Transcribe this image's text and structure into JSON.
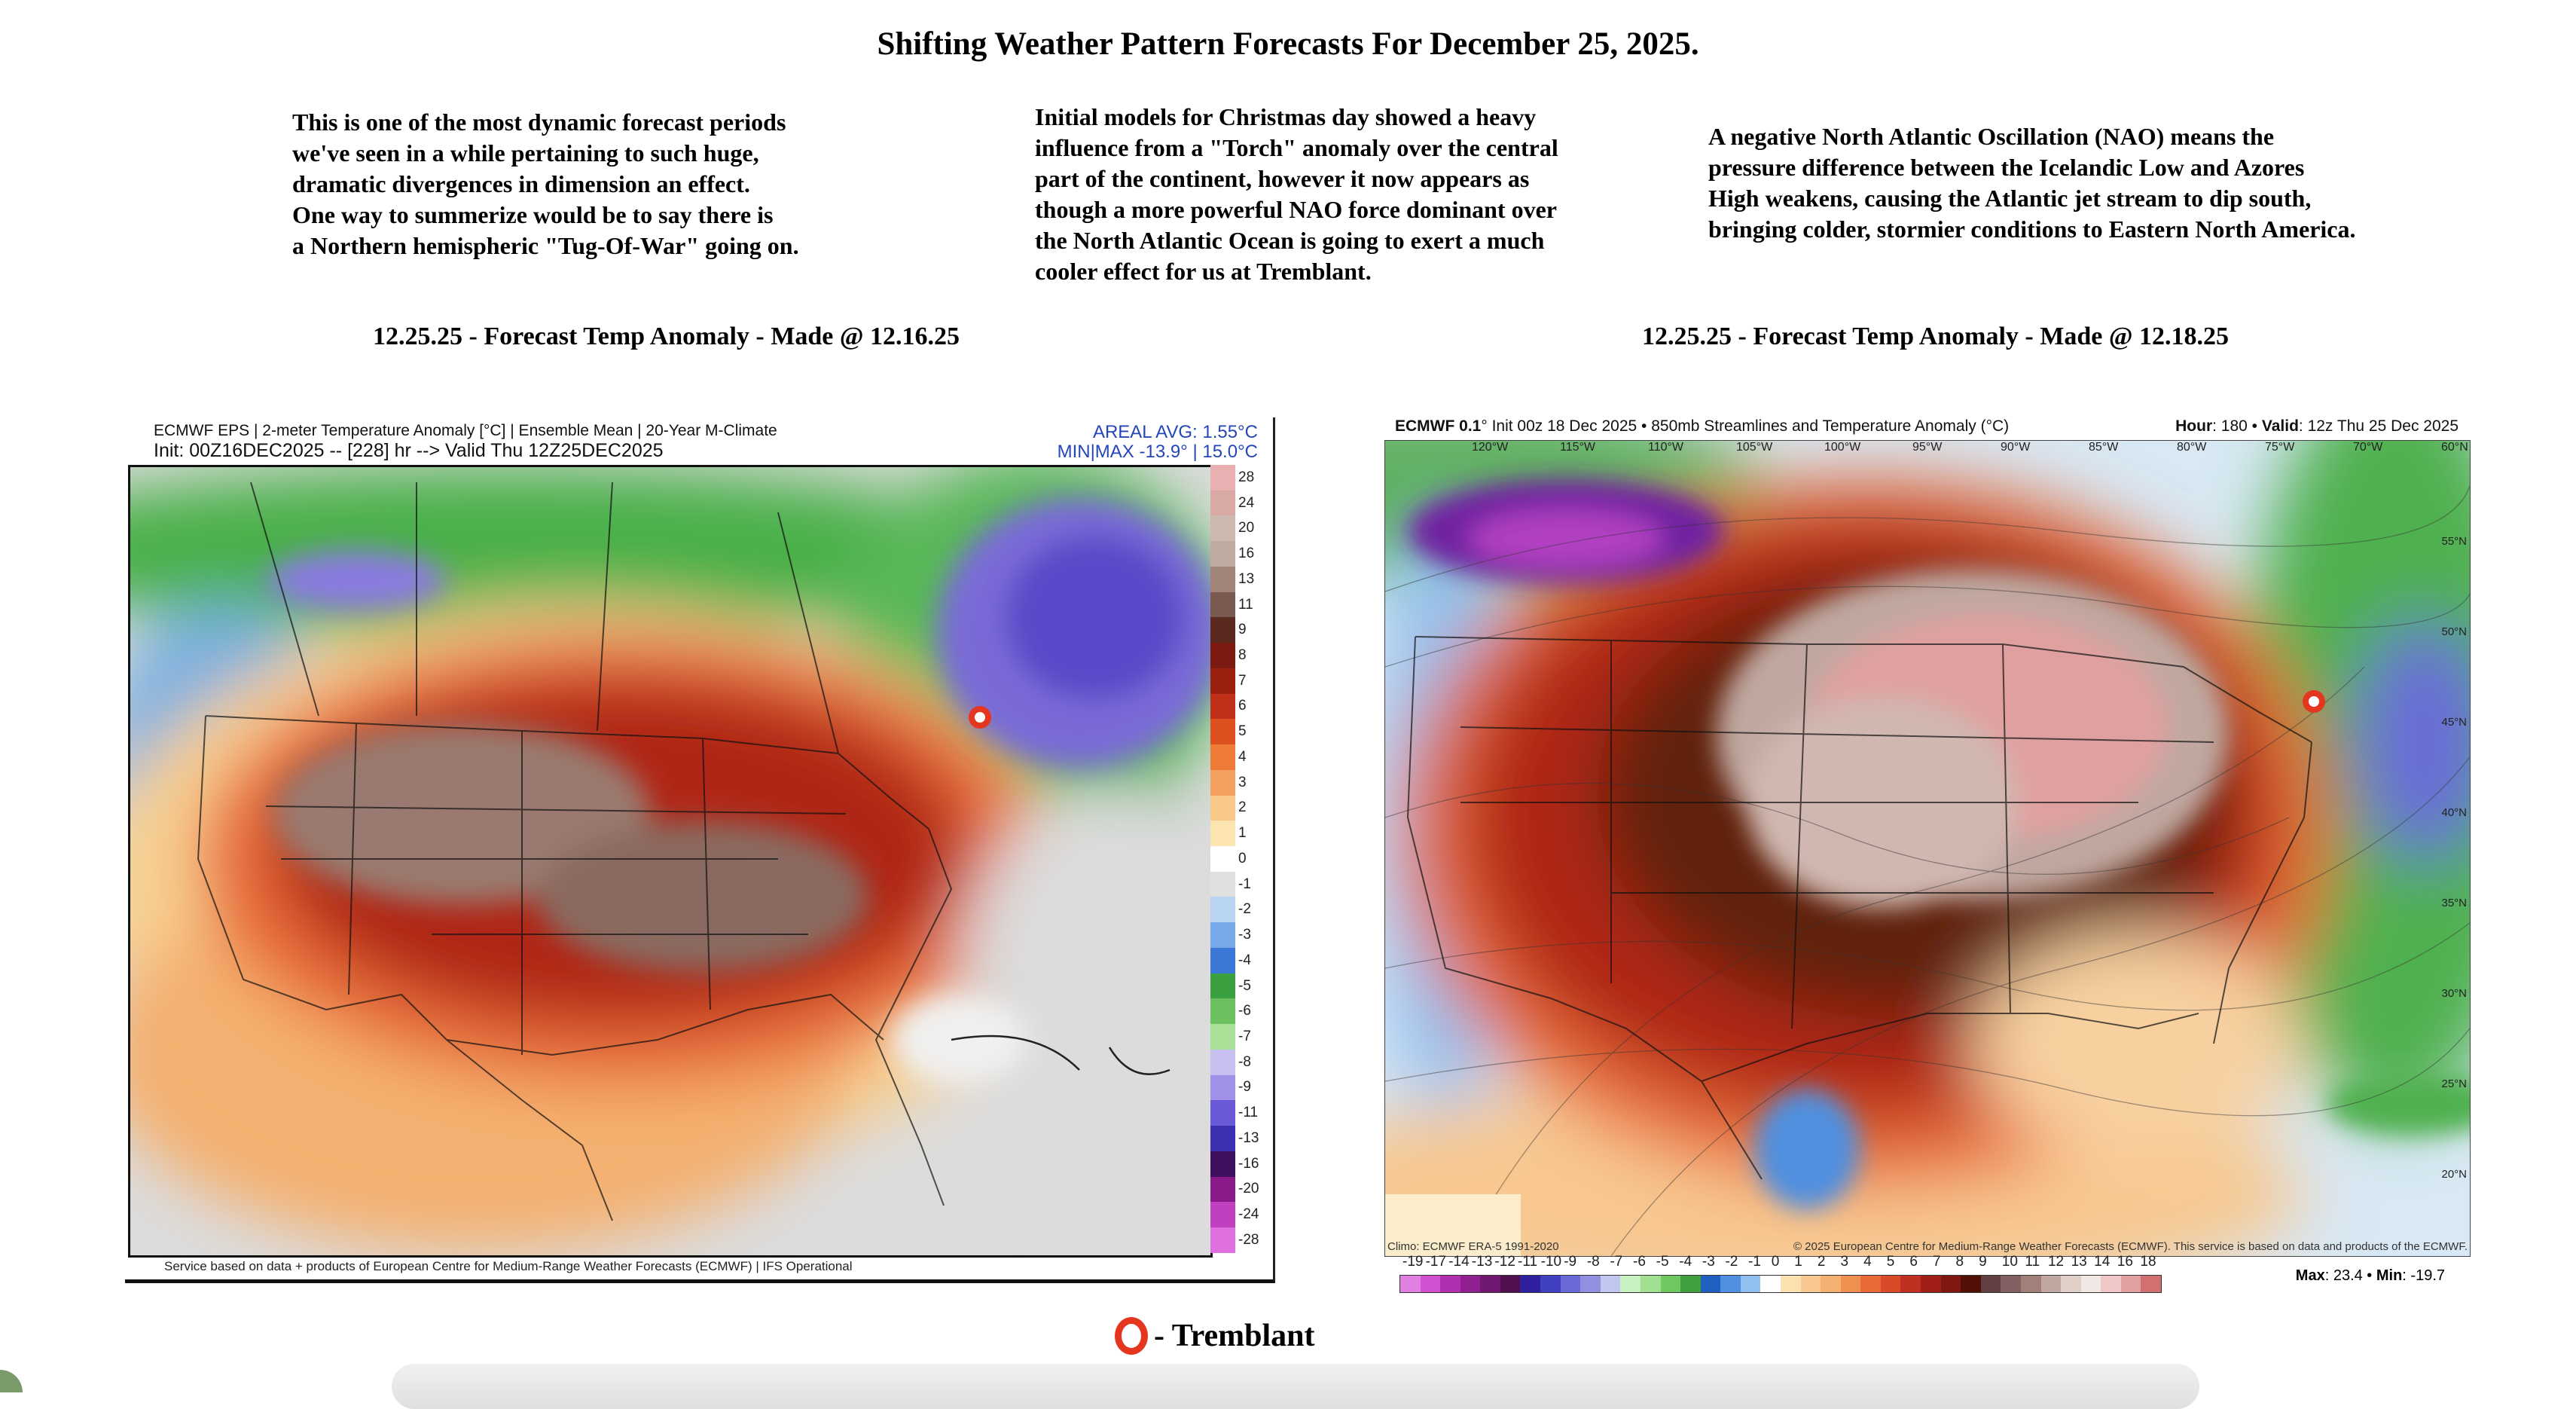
{
  "title": "Shifting Weather Pattern Forecasts For December 25, 2025.",
  "paragraphs": [
    "This is one of the most dynamic forecast periods\nwe've seen in a while pertaining to such huge,\ndramatic divergences in dimension an effect.\nOne way to summerize would be to say there is\na Northern hemispheric \"Tug-Of-War\" going on.",
    "Initial models for Christmas day showed a heavy\ninfluence from a \"Torch\" anomaly over the central\npart of the continent, however it now appears as\nthough a more powerful NAO force dominant over\nthe North Atlantic Ocean is going to exert a much\ncooler effect for us at Tremblant.",
    "A negative North Atlantic Oscillation (NAO) means the\npressure difference between the Icelandic Low and Azores\nHigh weakens, causing the Atlantic jet stream to dip south,\nbringing colder, stormier conditions to Eastern North America."
  ],
  "left_map": {
    "caption": "12.25.25 - Forecast Temp Anomaly - Made @ 12.16.25",
    "header_line1": "ECMWF EPS | 2-meter Temperature Anomaly [°C] | Ensemble Mean | 20-Year M-Climate",
    "header_line2": "Init: 00Z16DEC2025 -- [228] hr --> Valid Thu 12Z25DEC2025",
    "areal_avg": "AREAL AVG: 1.55°C",
    "min_max": "MIN|MAX -13.9° | 15.0°C",
    "footer": "Service based on data + products of European Centre for Medium-Range Weather Forecasts (ECMWF) | IFS Operational",
    "colorbar_labels": [
      "28",
      "24",
      "20",
      "16",
      "13",
      "11",
      "9",
      "8",
      "7",
      "6",
      "5",
      "4",
      "3",
      "2",
      "1",
      "0",
      "-1",
      "-2",
      "-3",
      "-4",
      "-5",
      "-6",
      "-7",
      "-8",
      "-9",
      "-11",
      "-13",
      "-16",
      "-20",
      "-24",
      "-28"
    ],
    "colorbar_colors": [
      "#e8b0b0",
      "#d9a9a4",
      "#cdb8b0",
      "#bfaaa0",
      "#a08478",
      "#7a5a50",
      "#5a2a20",
      "#7a1a10",
      "#9a2010",
      "#c03018",
      "#de5020",
      "#ee7a38",
      "#f4a060",
      "#f8c888",
      "#fbe4b0",
      "#ffffff",
      "#e0e0e0",
      "#b8d4f0",
      "#78a8e8",
      "#3c78d8",
      "#3aa040",
      "#6cc060",
      "#a8e098",
      "#c8c0f0",
      "#a090e8",
      "#6a5ad8",
      "#3a30b0",
      "#401060",
      "#8a1a8a",
      "#c040c0",
      "#e070e0"
    ]
  },
  "right_map": {
    "caption": "12.25.25 - Forecast Temp Anomaly - Made @ 12.18.25",
    "header_model": "ECMWF 0.1",
    "header_rest": "° Init 00z 18 Dec 2025 • 850mb Streamlines and Temperature Anomaly (°C)",
    "hour_label": "Hour",
    "hour_value": ": 180 • ",
    "valid_label": "Valid",
    "valid_value": ": 12z Thu 25 Dec 2025",
    "lon_labels": [
      "120°W",
      "115°W",
      "110°W",
      "105°W",
      "100°W",
      "95°W",
      "90°W",
      "85°W",
      "80°W",
      "75°W",
      "70°W",
      "60°N"
    ],
    "lat_labels": [
      "55°N",
      "50°N",
      "45°N",
      "40°N",
      "35°N",
      "30°N",
      "25°N",
      "20°N"
    ],
    "climo": "Climo: ECMWF ERA-5 1991-2020",
    "copyright": "© 2025 European Centre for Medium-Range Weather Forecasts (ECMWF). This service is based on data and products of the ECMWF.",
    "colorbar_labels": [
      "-19",
      "-17",
      "-14",
      "-13",
      "-12",
      "-11",
      "-10",
      "-9",
      "-8",
      "-7",
      "-6",
      "-5",
      "-4",
      "-3",
      "-2",
      "-1",
      "0",
      "1",
      "2",
      "3",
      "4",
      "5",
      "6",
      "7",
      "8",
      "9",
      "10",
      "11",
      "12",
      "13",
      "14",
      "16",
      "18"
    ],
    "colorbar_colors": [
      "#e080e0",
      "#d050d0",
      "#b030b0",
      "#902090",
      "#701870",
      "#501050",
      "#3020a0",
      "#4040c0",
      "#6a6ad8",
      "#9090e0",
      "#c0c8f0",
      "#c8f0c0",
      "#a0e090",
      "#70c860",
      "#40a040",
      "#2060c0",
      "#5090e0",
      "#90c0f0",
      "#ffffff",
      "#fbe0b0",
      "#f8c890",
      "#f4b070",
      "#f09050",
      "#e86a38",
      "#d84a28",
      "#c03020",
      "#a02018",
      "#801810",
      "#501008",
      "#604040",
      "#806060",
      "#a08078",
      "#c0a8a0",
      "#e0d0c8",
      "#f0e8e4",
      "#f0c8c8",
      "#e0a0a0",
      "#d07070"
    ],
    "max_label": "Max",
    "max_value": ": 23.4 • ",
    "min_label": "Min",
    "min_value": ": -19.7"
  },
  "legend": {
    "label": "- Tremblant",
    "marker_color": "#e53620"
  }
}
